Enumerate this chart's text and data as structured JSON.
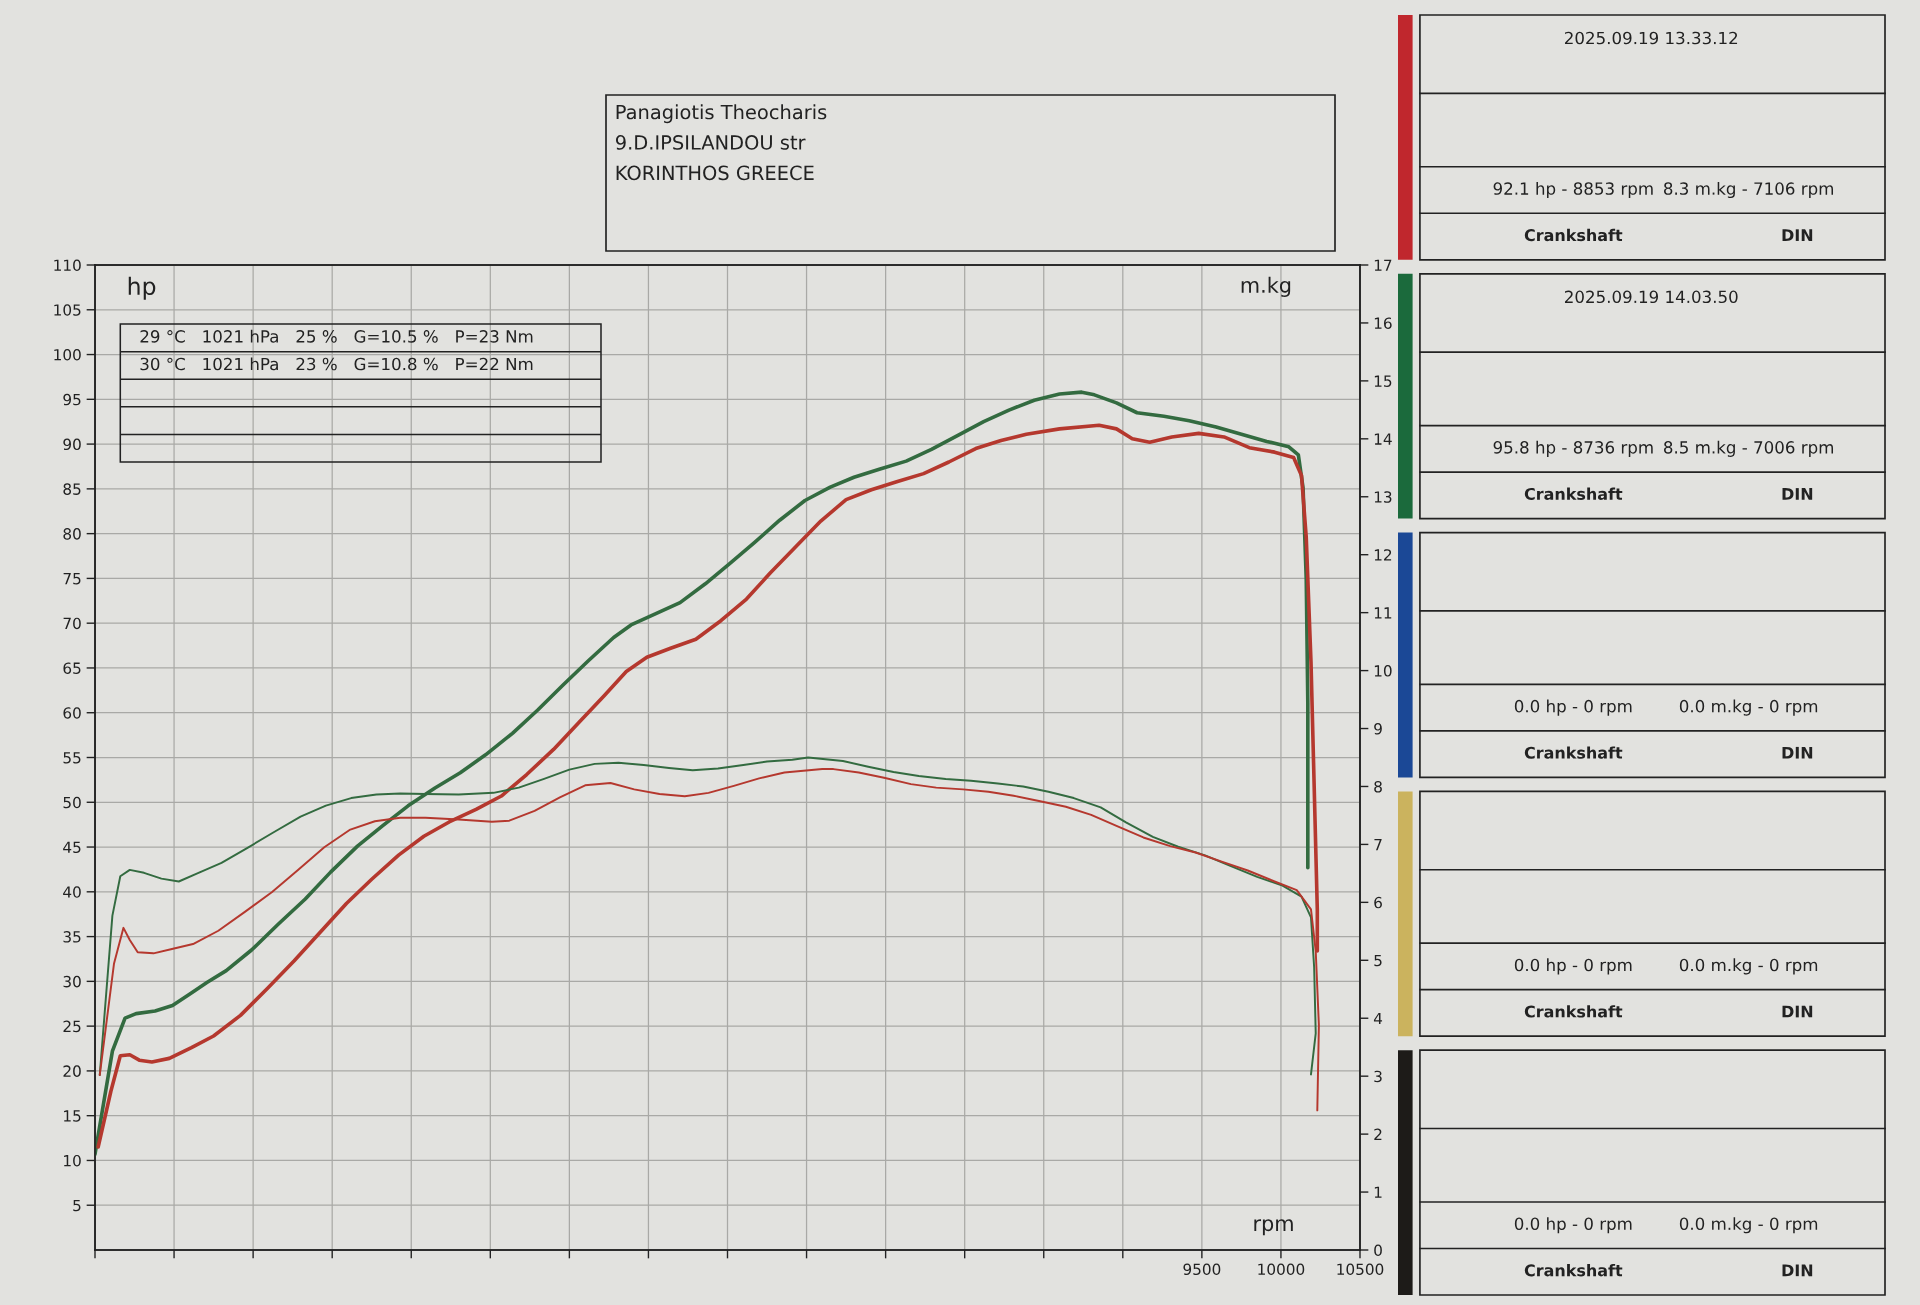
{
  "chart_data": [
    {
      "type": "other",
      "annotations": [
        "Panagiotis Theocharis",
        "9.D.IPSILANDOU str",
        "KORINTHOS GREECE"
      ]
    },
    {
      "type": "line",
      "xlabel": "rpm",
      "ylabel": "hp",
      "y2label": "m.kg",
      "xlim": [
        2500,
        10500
      ],
      "xticks": [
        {
          "value": 2500,
          "label": null
        },
        {
          "value": 3000,
          "label": null
        },
        {
          "value": 3500,
          "label": null
        },
        {
          "value": 4000,
          "label": null
        },
        {
          "value": 4500,
          "label": null
        },
        {
          "value": 5000,
          "label": null
        },
        {
          "value": 5500,
          "label": null
        },
        {
          "value": 6000,
          "label": null
        },
        {
          "value": 6500,
          "label": null
        },
        {
          "value": 7000,
          "label": null
        },
        {
          "value": 7500,
          "label": null
        },
        {
          "value": 8000,
          "label": null
        },
        {
          "value": 8500,
          "label": null
        },
        {
          "value": 9000,
          "label": null
        },
        9500,
        10000,
        10500
      ],
      "ylim": [
        0,
        110
      ],
      "yticks": [
        5,
        10,
        15,
        20,
        25,
        30,
        35,
        40,
        45,
        50,
        55,
        60,
        65,
        70,
        75,
        80,
        85,
        90,
        95,
        100,
        105,
        110
      ],
      "y2lim": [
        0,
        17
      ],
      "y2ticks": [
        0,
        1,
        2,
        3,
        4,
        5,
        6,
        7,
        8,
        9,
        10,
        11,
        12,
        13,
        14,
        15,
        16,
        17
      ],
      "grid": true,
      "annotations": [
        "29 °C   1021 hPa   25 %   G=10.5 %   P=23 Nm",
        "30 °C   1021 hPa   23 %   G=10.8 %   P=22 Nm"
      ],
      "series": [
        {
          "color": "#336b40",
          "x": [
            2500,
            2610,
            2690,
            2760,
            2880,
            2990,
            3100,
            3210,
            3330,
            3490,
            3660,
            3830,
            3990,
            4160,
            4320,
            4480,
            4650,
            4810,
            4970,
            5140,
            5300,
            5460,
            5620,
            5780,
            5890,
            6040,
            6200,
            6360,
            6510,
            6670,
            6830,
            6990,
            7150,
            7300,
            7460,
            7630,
            7790,
            7960,
            8120,
            8280,
            8440,
            8600,
            8740,
            8820,
            8960,
            9090,
            9260,
            9420,
            9590,
            9750,
            9910,
            10050,
            10110,
            10140,
            10160,
            10170,
            10170
          ],
          "values": [
            10.7,
            22.2,
            25.9,
            26.4,
            26.7,
            27.3,
            28.6,
            29.9,
            31.2,
            33.5,
            36.4,
            39.2,
            42.2,
            45.1,
            47.4,
            49.6,
            51.6,
            53.3,
            55.3,
            57.7,
            60.3,
            63.1,
            65.8,
            68.4,
            69.8,
            71.0,
            72.3,
            74.4,
            76.6,
            79.0,
            81.5,
            83.7,
            85.2,
            86.3,
            87.2,
            88.1,
            89.4,
            91.0,
            92.5,
            93.8,
            94.9,
            95.6,
            95.8,
            95.5,
            94.6,
            93.5,
            93.1,
            92.6,
            91.9,
            91.1,
            90.3,
            89.7,
            88.8,
            85.1,
            74.9,
            61.1,
            42.7
          ]
        },
        {
          "color": "#b5382e",
          "x": [
            2520,
            2600,
            2660,
            2720,
            2780,
            2860,
            2970,
            3110,
            3250,
            3420,
            3590,
            3760,
            3930,
            4090,
            4250,
            4420,
            4580,
            4740,
            4910,
            5070,
            5230,
            5400,
            5560,
            5720,
            5860,
            5990,
            6140,
            6300,
            6460,
            6620,
            6770,
            6930,
            7090,
            7250,
            7410,
            7570,
            7740,
            7900,
            8070,
            8230,
            8390,
            8600,
            8850,
            8960,
            9060,
            9170,
            9310,
            9480,
            9640,
            9800,
            9960,
            10080,
            10130,
            10160,
            10190,
            10210,
            10230,
            10230
          ],
          "values": [
            11.5,
            17.7,
            21.7,
            21.8,
            21.2,
            21.0,
            21.4,
            22.6,
            23.9,
            26.2,
            29.2,
            32.3,
            35.6,
            38.7,
            41.4,
            44.1,
            46.2,
            47.8,
            49.2,
            50.7,
            53.1,
            55.9,
            58.9,
            61.9,
            64.6,
            66.2,
            67.2,
            68.2,
            70.3,
            72.7,
            75.6,
            78.5,
            81.4,
            83.8,
            84.9,
            85.8,
            86.7,
            88.0,
            89.5,
            90.4,
            91.1,
            91.7,
            92.1,
            91.7,
            90.6,
            90.2,
            90.8,
            91.2,
            90.8,
            89.6,
            89.1,
            88.5,
            86.5,
            79.6,
            65.7,
            51.9,
            38.0,
            33.4
          ]
        },
        {
          "color": "#336b40",
          "axis": "y2",
          "x": [
            2530,
            2610,
            2660,
            2720,
            2810,
            2920,
            3030,
            3140,
            3300,
            3470,
            3630,
            3800,
            3960,
            4120,
            4280,
            4430,
            4590,
            4800,
            5020,
            5180,
            5340,
            5500,
            5660,
            5810,
            5970,
            6130,
            6280,
            6440,
            6600,
            6750,
            6910,
            7010,
            7230,
            7390,
            7550,
            7710,
            7880,
            8040,
            8210,
            8370,
            8530,
            8690,
            8860,
            9020,
            9190,
            9350,
            9520,
            9680,
            9850,
            10010,
            10130,
            10190,
            10210,
            10220,
            10190
          ],
          "values": [
            3.02,
            5.77,
            6.45,
            6.56,
            6.51,
            6.41,
            6.36,
            6.49,
            6.68,
            6.95,
            7.21,
            7.48,
            7.67,
            7.8,
            7.86,
            7.88,
            7.87,
            7.86,
            7.89,
            7.98,
            8.13,
            8.29,
            8.39,
            8.41,
            8.37,
            8.32,
            8.28,
            8.31,
            8.37,
            8.43,
            8.46,
            8.5,
            8.44,
            8.34,
            8.25,
            8.18,
            8.13,
            8.1,
            8.05,
            8.0,
            7.91,
            7.8,
            7.64,
            7.38,
            7.13,
            6.96,
            6.81,
            6.63,
            6.44,
            6.29,
            6.1,
            5.74,
            4.88,
            3.74,
            3.03
          ]
        },
        {
          "color": "#b5382e",
          "axis": "y2",
          "x": [
            2530,
            2620,
            2680,
            2720,
            2770,
            2870,
            2980,
            3120,
            3280,
            3450,
            3620,
            3780,
            3950,
            4110,
            4270,
            4430,
            4590,
            4800,
            5010,
            5120,
            5280,
            5440,
            5600,
            5760,
            5910,
            6070,
            6230,
            6380,
            6540,
            6700,
            6860,
            7100,
            7170,
            7330,
            7490,
            7660,
            7820,
            7990,
            8150,
            8310,
            8470,
            8640,
            8800,
            8960,
            9130,
            9300,
            9460,
            9630,
            9790,
            9960,
            10100,
            10190,
            10220,
            10240,
            10230
          ],
          "values": [
            3.02,
            4.94,
            5.56,
            5.35,
            5.14,
            5.12,
            5.19,
            5.28,
            5.51,
            5.84,
            6.18,
            6.55,
            6.95,
            7.25,
            7.4,
            7.46,
            7.46,
            7.43,
            7.39,
            7.41,
            7.58,
            7.81,
            8.02,
            8.06,
            7.95,
            7.87,
            7.83,
            7.89,
            8.01,
            8.14,
            8.24,
            8.3,
            8.3,
            8.24,
            8.15,
            8.04,
            7.98,
            7.95,
            7.91,
            7.84,
            7.75,
            7.65,
            7.51,
            7.32,
            7.12,
            6.97,
            6.86,
            6.7,
            6.55,
            6.36,
            6.21,
            5.88,
            5.16,
            3.88,
            2.41
          ]
        }
      ]
    },
    {
      "type": "other",
      "title": "2025.09.19 13.33.12",
      "color": "#c0272d",
      "annotations": [
        "92.1 hp - 8853 rpm",
        "8.3 m.kg - 7106 rpm",
        "Crankshaft",
        "DIN"
      ]
    },
    {
      "type": "other",
      "title": "2025.09.19 14.03.50",
      "color": "#1b6a3c",
      "annotations": [
        "95.8 hp - 8736 rpm",
        "8.5 m.kg - 7006 rpm",
        "Crankshaft",
        "DIN"
      ]
    },
    {
      "type": "other",
      "color": "#1b4896",
      "annotations": [
        "0.0 hp - 0 rpm",
        "0.0 m.kg - 0 rpm",
        "Crankshaft",
        "DIN"
      ]
    },
    {
      "type": "other",
      "color": "#cbb35e",
      "annotations": [
        "0.0 hp - 0 rpm",
        "0.0 m.kg - 0 rpm",
        "Crankshaft",
        "DIN"
      ]
    },
    {
      "type": "other",
      "color": "#1d1b18",
      "annotations": [
        "0.0 hp - 0 rpm",
        "0.0 m.kg - 0 rpm",
        "Crankshaft",
        "DIN"
      ]
    }
  ]
}
